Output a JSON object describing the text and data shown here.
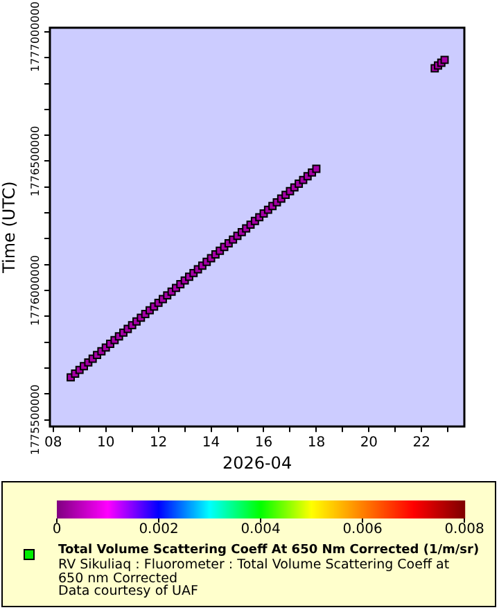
{
  "chart_data": {
    "type": "scatter",
    "xlabel": "2026-04",
    "ylabel": "Time (UTC)",
    "clabel": "Total Volume Scattering Coeff At 650 Nm Corrected (1/m/sr)",
    "annotations": [
      "RV Sikuliaq : Fluorometer : Total Volume Scattering Coeff at 650 nm Corrected",
      "Data courtesy of UAF"
    ],
    "x": [
      "2026-04-08T16:00",
      "2026-04-08T20:00",
      "2026-04-09T00:00",
      "2026-04-09T04:00",
      "2026-04-09T08:00",
      "2026-04-09T12:00",
      "2026-04-09T16:00",
      "2026-04-09T20:00",
      "2026-04-10T00:00",
      "2026-04-10T04:00",
      "2026-04-10T08:00",
      "2026-04-10T12:00",
      "2026-04-10T16:00",
      "2026-04-10T20:00",
      "2026-04-11T00:00",
      "2026-04-11T04:00",
      "2026-04-11T08:00",
      "2026-04-11T12:00",
      "2026-04-11T16:00",
      "2026-04-11T20:00",
      "2026-04-12T00:00",
      "2026-04-12T04:00",
      "2026-04-12T08:00",
      "2026-04-12T12:00",
      "2026-04-12T16:00",
      "2026-04-12T20:00",
      "2026-04-13T00:00",
      "2026-04-13T04:00",
      "2026-04-13T08:00",
      "2026-04-13T12:00",
      "2026-04-13T16:00",
      "2026-04-13T20:00",
      "2026-04-14T00:00",
      "2026-04-14T04:00",
      "2026-04-14T08:00",
      "2026-04-14T12:00",
      "2026-04-14T16:00",
      "2026-04-14T20:00",
      "2026-04-15T00:00",
      "2026-04-15T04:00",
      "2026-04-15T08:00",
      "2026-04-15T12:00",
      "2026-04-15T16:00",
      "2026-04-15T20:00",
      "2026-04-16T00:00",
      "2026-04-16T04:00",
      "2026-04-16T08:00",
      "2026-04-16T12:00",
      "2026-04-16T16:00",
      "2026-04-16T20:00",
      "2026-04-17T00:00",
      "2026-04-17T04:00",
      "2026-04-17T08:00",
      "2026-04-17T12:00",
      "2026-04-17T16:00",
      "2026-04-17T20:00",
      "2026-04-18T00:00",
      "2026-04-22T12:00",
      "2026-04-22T15:00",
      "2026-04-22T18:00",
      "2026-04-22T21:00"
    ],
    "values": [
      1775664000,
      1775678400,
      1775692800,
      1775707200,
      1775721600,
      1775736000,
      1775750400,
      1775764800,
      1775779200,
      1775793600,
      1775808000,
      1775822400,
      1775836800,
      1775851200,
      1775865600,
      1775880000,
      1775894400,
      1775908800,
      1775923200,
      1775937600,
      1775952000,
      1775966400,
      1775980800,
      1775995200,
      1776009600,
      1776024000,
      1776038400,
      1776052800,
      1776067200,
      1776081600,
      1776096000,
      1776110400,
      1776124800,
      1776139200,
      1776153600,
      1776168000,
      1776182400,
      1776196800,
      1776211200,
      1776225600,
      1776240000,
      1776254400,
      1776268800,
      1776283200,
      1776297600,
      1776312000,
      1776326400,
      1776340800,
      1776355200,
      1776369600,
      1776384000,
      1776398400,
      1776412800,
      1776427200,
      1776441600,
      1776456000,
      1776470400,
      1776859200,
      1776870000,
      1776880800,
      1776891600
    ],
    "cvalues": [
      0.0003,
      0.0003,
      0.0003,
      0.0003,
      0.0003,
      0.0003,
      0.0003,
      0.0003,
      0.0003,
      0.0003,
      0.0003,
      0.0003,
      0.0003,
      0.0003,
      0.0003,
      0.0003,
      0.0003,
      0.0003,
      0.0003,
      0.0003,
      0.0003,
      0.0003,
      0.0003,
      0.0003,
      0.0003,
      0.0003,
      0.0003,
      0.0003,
      0.0003,
      0.0003,
      0.0003,
      0.0003,
      0.0003,
      0.0003,
      0.0003,
      0.0003,
      0.0003,
      0.0003,
      0.0003,
      0.0003,
      0.0003,
      0.0003,
      0.0003,
      0.0003,
      0.0003,
      0.0003,
      0.0003,
      0.0003,
      0.0003,
      0.0003,
      0.0003,
      0.0003,
      0.0003,
      0.0003,
      0.0003,
      0.0003,
      0.0003,
      0.0003,
      0.0003,
      0.0003,
      0.0003
    ],
    "clim": [
      0,
      0.008
    ],
    "cticks": [
      0,
      0.002,
      0.004,
      0.006,
      0.008
    ],
    "xlim": [
      "2026-04-07T21:00",
      "2026-04-23T15:00"
    ],
    "xticks": [
      {
        "value": "2026-04-08",
        "label": "08"
      },
      {
        "value": "2026-04-09",
        "label": null
      },
      {
        "value": "2026-04-10",
        "label": "10"
      },
      {
        "value": "2026-04-11",
        "label": null
      },
      {
        "value": "2026-04-12",
        "label": "12"
      },
      {
        "value": "2026-04-13",
        "label": null
      },
      {
        "value": "2026-04-14",
        "label": "14"
      },
      {
        "value": "2026-04-15",
        "label": null
      },
      {
        "value": "2026-04-16",
        "label": "16"
      },
      {
        "value": "2026-04-17",
        "label": null
      },
      {
        "value": "2026-04-18",
        "label": "18"
      },
      {
        "value": "2026-04-19",
        "label": null
      },
      {
        "value": "2026-04-20",
        "label": "20"
      },
      {
        "value": "2026-04-21",
        "label": null
      },
      {
        "value": "2026-04-22",
        "label": "22"
      },
      {
        "value": "2026-04-23",
        "label": null
      }
    ],
    "ylim": [
      1775474000,
      1777016000
    ],
    "yticks": [
      1775500000,
      {
        "value": 1775600000,
        "label": null
      },
      {
        "value": 1775700000,
        "label": null
      },
      {
        "value": 1775800000,
        "label": null
      },
      {
        "value": 1775900000,
        "label": null
      },
      1776000000,
      {
        "value": 1776100000,
        "label": null
      },
      {
        "value": 1776200000,
        "label": null
      },
      {
        "value": 1776300000,
        "label": null
      },
      {
        "value": 1776400000,
        "label": null
      },
      1776500000,
      {
        "value": 1776600000,
        "label": null
      },
      {
        "value": 1776700000,
        "label": null
      },
      {
        "value": 1776800000,
        "label": null
      },
      {
        "value": 1776900000,
        "label": null
      },
      1777000000
    ],
    "marker": "square",
    "grid": false,
    "legend": false
  }
}
